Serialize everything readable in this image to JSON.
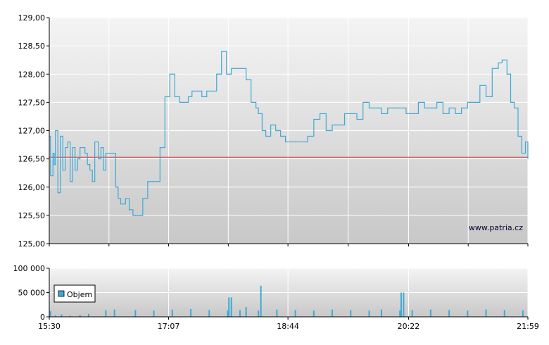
{
  "watermark": "www.patria.cz",
  "colors": {
    "price_line": "#3fa9d5",
    "reference_line": "#cc3333",
    "volume_bar": "#3fa9d5",
    "plot_bg_top": "#f4f4f4",
    "plot_bg_bottom": "#c8c8c8",
    "grid": "#ffffff",
    "axis": "#000000"
  },
  "chart_data": [
    {
      "type": "line",
      "reference_value": 126.53,
      "ylim": [
        125.0,
        129.0
      ],
      "y_ticks": [
        125.0,
        125.5,
        126.0,
        126.5,
        127.0,
        127.5,
        128.0,
        128.5,
        129.0
      ],
      "y_tick_labels": [
        "125,00",
        "125,50",
        "126,00",
        "126,50",
        "127,00",
        "127,50",
        "128,00",
        "128,50",
        "129,00"
      ],
      "x_range_minutes": [
        930,
        1319
      ],
      "series": [
        {
          "x_minutes": [
            930,
            931,
            933,
            934,
            935,
            937,
            939,
            941,
            943,
            945,
            947,
            949,
            951,
            953,
            955,
            957,
            959,
            961,
            963,
            965,
            967,
            970,
            972,
            974,
            976,
            978,
            980,
            982,
            984,
            986,
            988,
            990,
            992,
            995,
            998,
            1002,
            1006,
            1010,
            1013,
            1017,
            1020,
            1024,
            1028,
            1032,
            1036,
            1040,
            1043,
            1046,
            1050,
            1054,
            1058,
            1062,
            1066,
            1070,
            1074,
            1078,
            1082,
            1086,
            1090,
            1094,
            1098,
            1100,
            1103,
            1106,
            1110,
            1114,
            1118,
            1122,
            1125,
            1130,
            1135,
            1140,
            1145,
            1150,
            1155,
            1160,
            1165,
            1170,
            1175,
            1180,
            1185,
            1190,
            1195,
            1200,
            1205,
            1210,
            1215,
            1220,
            1225,
            1230,
            1235,
            1240,
            1245,
            1250,
            1255,
            1260,
            1265,
            1270,
            1275,
            1280,
            1285,
            1290,
            1295,
            1298,
            1300,
            1302,
            1305,
            1308,
            1311,
            1314,
            1317,
            1319
          ],
          "values": [
            126.9,
            126.2,
            126.6,
            126.4,
            127.0,
            125.9,
            126.9,
            126.3,
            126.7,
            126.8,
            126.1,
            126.7,
            126.3,
            126.5,
            126.7,
            126.7,
            126.6,
            126.4,
            126.3,
            126.1,
            126.8,
            126.5,
            126.7,
            126.3,
            126.6,
            126.6,
            126.6,
            126.6,
            126.0,
            125.8,
            125.7,
            125.7,
            125.8,
            125.6,
            125.5,
            125.5,
            125.8,
            126.1,
            126.1,
            126.1,
            126.7,
            127.6,
            128.0,
            127.6,
            127.5,
            127.5,
            127.6,
            127.7,
            127.7,
            127.6,
            127.7,
            127.7,
            128.0,
            128.4,
            128.0,
            128.1,
            128.1,
            128.1,
            127.9,
            127.5,
            127.4,
            127.3,
            127.0,
            126.9,
            127.1,
            127.0,
            126.9,
            126.8,
            126.8,
            126.8,
            126.8,
            126.9,
            127.2,
            127.3,
            127.0,
            127.1,
            127.1,
            127.3,
            127.3,
            127.2,
            127.5,
            127.4,
            127.4,
            127.3,
            127.4,
            127.4,
            127.4,
            127.3,
            127.3,
            127.5,
            127.4,
            127.4,
            127.5,
            127.3,
            127.4,
            127.3,
            127.4,
            127.5,
            127.5,
            127.8,
            127.6,
            128.1,
            128.2,
            128.25,
            128.25,
            128.0,
            127.5,
            127.4,
            126.9,
            126.6,
            126.8,
            126.5
          ]
        }
      ]
    },
    {
      "type": "bar",
      "ylim": [
        0,
        100000
      ],
      "y_ticks": [
        0,
        50000,
        100000
      ],
      "y_tick_labels": [
        "0",
        "50 000",
        "100 000"
      ],
      "x_ticks_minutes": [
        930,
        1027,
        1124,
        1222,
        1319
      ],
      "x_tick_labels": [
        "15:30",
        "17:07",
        "18:44",
        "20:22",
        "21:59"
      ],
      "x_range_minutes": [
        930,
        1319
      ],
      "series": [
        {
          "name": "Objem",
          "x_minutes": [
            931,
            935,
            940,
            947,
            955,
            962,
            976,
            983,
            1000,
            1015,
            1030,
            1045,
            1060,
            1075,
            1076,
            1078,
            1085,
            1090,
            1100,
            1102,
            1115,
            1130,
            1145,
            1160,
            1175,
            1190,
            1200,
            1215,
            1216,
            1218,
            1225,
            1240,
            1255,
            1270,
            1285,
            1300,
            1315
          ],
          "values": [
            12000,
            3000,
            5000,
            2000,
            4000,
            6000,
            14000,
            15000,
            14000,
            13000,
            15000,
            16000,
            14000,
            13000,
            40000,
            40000,
            14000,
            20000,
            13000,
            64000,
            15000,
            14000,
            13000,
            15000,
            14000,
            13000,
            15000,
            13000,
            50000,
            50000,
            14000,
            15000,
            14000,
            13000,
            15000,
            14000,
            13000
          ]
        }
      ]
    }
  ]
}
